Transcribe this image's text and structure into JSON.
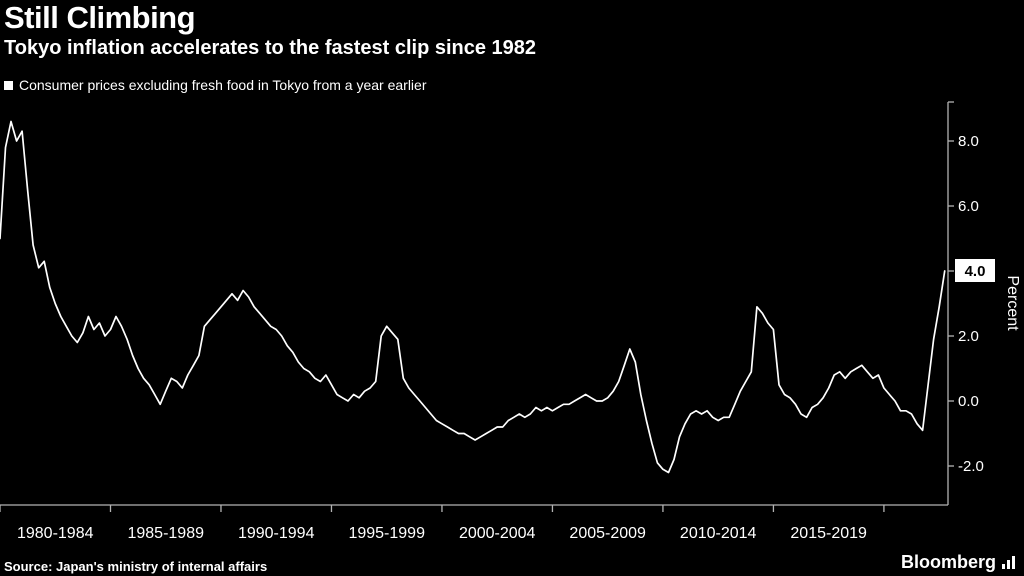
{
  "footer": {
    "source": "Source: Japan's ministry of internal affairs",
    "brand": "Bloomberg"
  },
  "chart_data": {
    "type": "line",
    "title": "Still Climbing",
    "subtitle": "Tokyo inflation accelerates to the fastest clip since 1982",
    "legend_label": "Consumer prices excluding fresh food in Tokyo from a year earlier",
    "ylabel": "Percent",
    "ylim": [
      -3.2,
      9.2
    ],
    "y_ticks": [
      8.0,
      6.0,
      4.0,
      2.0,
      0.0,
      -2.0
    ],
    "y_tick_labels": [
      "8.0",
      "6.0",
      "4.0",
      "2.0",
      "0.0",
      "-2.0"
    ],
    "highlight_tick": "4.0",
    "highlight_value": 4.0,
    "x_range": [
      1980,
      2022.9
    ],
    "x_major_ticks": [
      1980,
      1985,
      1990,
      1995,
      2000,
      2005,
      2010,
      2015,
      2020
    ],
    "x_tick_labels": [
      "1980-1984",
      "1985-1989",
      "1990-1994",
      "1995-1999",
      "2000-2004",
      "2005-2009",
      "2010-2014",
      "2015-2019"
    ],
    "grid": false,
    "legend_position": "top-left",
    "line_color": "#ffffff",
    "axis_color": "#b3b3b3",
    "series": [
      {
        "name": "Consumer prices excluding fresh food in Tokyo, % change from a year earlier",
        "x_start": 1980.0,
        "x_step": 0.25,
        "values": [
          5.0,
          7.8,
          8.6,
          8.0,
          8.3,
          6.5,
          4.8,
          4.1,
          4.3,
          3.5,
          3.0,
          2.6,
          2.3,
          2.0,
          1.8,
          2.1,
          2.6,
          2.2,
          2.4,
          2.0,
          2.2,
          2.6,
          2.3,
          1.9,
          1.4,
          1.0,
          0.7,
          0.5,
          0.2,
          -0.1,
          0.3,
          0.7,
          0.6,
          0.4,
          0.8,
          1.1,
          1.4,
          2.3,
          2.5,
          2.7,
          2.9,
          3.1,
          3.3,
          3.1,
          3.4,
          3.2,
          2.9,
          2.7,
          2.5,
          2.3,
          2.2,
          2.0,
          1.7,
          1.5,
          1.2,
          1.0,
          0.9,
          0.7,
          0.6,
          0.8,
          0.5,
          0.2,
          0.1,
          0.0,
          0.2,
          0.1,
          0.3,
          0.4,
          0.6,
          2.0,
          2.3,
          2.1,
          1.9,
          0.7,
          0.4,
          0.2,
          0.0,
          -0.2,
          -0.4,
          -0.6,
          -0.7,
          -0.8,
          -0.9,
          -1.0,
          -1.0,
          -1.1,
          -1.2,
          -1.1,
          -1.0,
          -0.9,
          -0.8,
          -0.8,
          -0.6,
          -0.5,
          -0.4,
          -0.5,
          -0.4,
          -0.2,
          -0.3,
          -0.2,
          -0.3,
          -0.2,
          -0.1,
          -0.1,
          0.0,
          0.1,
          0.2,
          0.1,
          0.0,
          0.0,
          0.1,
          0.3,
          0.6,
          1.1,
          1.6,
          1.2,
          0.2,
          -0.6,
          -1.3,
          -1.9,
          -2.1,
          -2.2,
          -1.8,
          -1.1,
          -0.7,
          -0.4,
          -0.3,
          -0.4,
          -0.3,
          -0.5,
          -0.6,
          -0.5,
          -0.5,
          -0.1,
          0.3,
          0.6,
          0.9,
          2.9,
          2.7,
          2.4,
          2.2,
          0.5,
          0.2,
          0.1,
          -0.1,
          -0.4,
          -0.5,
          -0.2,
          -0.1,
          0.1,
          0.4,
          0.8,
          0.9,
          0.7,
          0.9,
          1.0,
          1.1,
          0.9,
          0.7,
          0.8,
          0.4,
          0.2,
          0.0,
          -0.3,
          -0.3,
          -0.4,
          -0.7,
          -0.9,
          0.5,
          1.9,
          2.9,
          4.0
        ]
      }
    ]
  }
}
